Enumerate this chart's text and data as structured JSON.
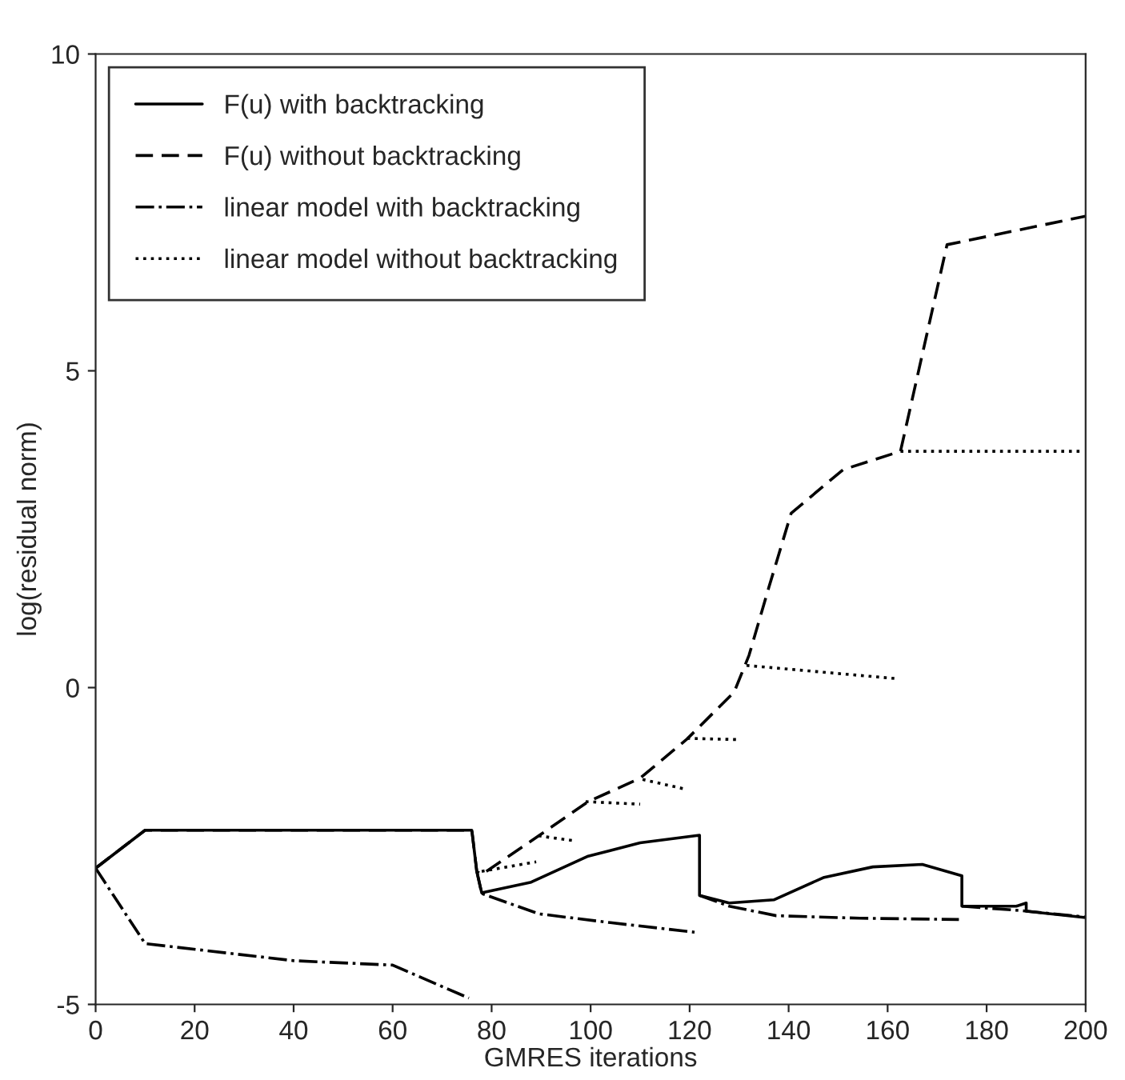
{
  "chart_data": {
    "type": "line",
    "xlabel": "GMRES iterations",
    "ylabel": "log(residual norm)",
    "xlim": [
      0,
      200
    ],
    "ylim": [
      -5,
      10
    ],
    "xticks": [
      0,
      20,
      40,
      60,
      80,
      100,
      120,
      140,
      160,
      180,
      200
    ],
    "yticks": [
      -5,
      0,
      5,
      10
    ],
    "grid": false,
    "legend": "top left",
    "marker": "none",
    "series": [
      {
        "name": "F(u) with backtracking",
        "color": "#000000",
        "line_style": "solid",
        "x": [
          0,
          10,
          76,
          77,
          78,
          88,
          99.5,
          110,
          122,
          122,
          128,
          137,
          147,
          157,
          167,
          175,
          175,
          186,
          188,
          188,
          200
        ],
        "values": [
          -2.85,
          -2.25,
          -2.25,
          -2.9,
          -3.24,
          -3.07,
          -2.66,
          -2.45,
          -2.33,
          -3.28,
          -3.4,
          -3.35,
          -3.0,
          -2.83,
          -2.79,
          -2.97,
          -3.45,
          -3.45,
          -3.4,
          -3.53,
          -3.63
        ]
      },
      {
        "name": "F(u) without backtracking",
        "color": "#000000",
        "line_style": "dashed",
        "x": [
          0,
          10,
          76,
          77,
          78,
          89.5,
          99.5,
          110,
          119.5,
          129,
          132,
          136,
          140.5,
          151,
          162.6,
          172,
          200
        ],
        "values": [
          -2.85,
          -2.25,
          -2.25,
          -2.9,
          -2.95,
          -2.34,
          -1.8,
          -1.43,
          -0.81,
          -0.07,
          0.51,
          1.58,
          2.75,
          3.44,
          3.73,
          6.99,
          7.44
        ]
      },
      {
        "name": "linear model with backtracking",
        "color": "#000000",
        "line_style": "dashdot",
        "x": [
          0,
          10,
          40,
          60,
          75.4
        ],
        "values": [
          -2.85,
          -4.04,
          -4.31,
          -4.38,
          -4.9
        ]
      },
      {
        "color": "#000000",
        "line_style": "dashdot",
        "x": [
          77,
          78,
          89.5,
          104,
          121
        ],
        "values": [
          -2.9,
          -3.25,
          -3.57,
          -3.71,
          -3.86
        ]
      },
      {
        "color": "#000000",
        "line_style": "dashdot",
        "x": [
          122,
          128,
          137.5,
          154.4,
          174.4
        ],
        "values": [
          -3.28,
          -3.45,
          -3.6,
          -3.64,
          -3.66
        ]
      },
      {
        "color": "#000000",
        "line_style": "dashdot",
        "x": [
          175,
          187,
          200
        ],
        "values": [
          -3.45,
          -3.52,
          -3.62
        ]
      },
      {
        "name": "linear model without backtracking",
        "color": "#000000",
        "line_style": "dotted",
        "x": [
          78,
          89
        ],
        "values": [
          -2.9,
          -2.75
        ]
      },
      {
        "color": "#000000",
        "line_style": "dotted",
        "x": [
          89.5,
          97
        ],
        "values": [
          -2.34,
          -2.42
        ]
      },
      {
        "color": "#000000",
        "line_style": "dotted",
        "x": [
          99,
          110
        ],
        "values": [
          -1.8,
          -1.84
        ]
      },
      {
        "color": "#000000",
        "line_style": "dotted",
        "x": [
          110.5,
          119
        ],
        "values": [
          -1.45,
          -1.6
        ]
      },
      {
        "color": "#000000",
        "line_style": "dotted",
        "x": [
          119.5,
          129.5
        ],
        "values": [
          -0.8,
          -0.82
        ]
      },
      {
        "color": "#000000",
        "line_style": "dotted",
        "x": [
          131.5,
          162
        ],
        "values": [
          0.35,
          0.14
        ]
      },
      {
        "color": "#000000",
        "line_style": "dotted",
        "x": [
          162.6,
          199.5
        ],
        "values": [
          3.73,
          3.73
        ]
      }
    ]
  }
}
